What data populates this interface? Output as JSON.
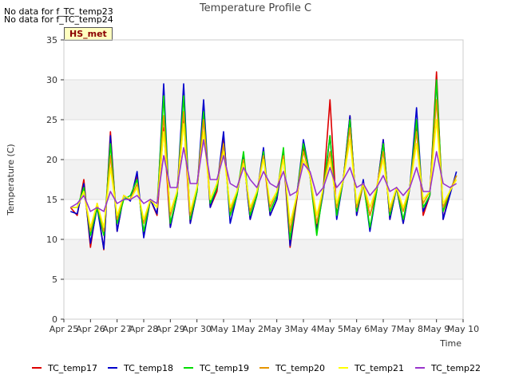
{
  "notices": [
    "No data for f_TC_temp23",
    "No data for f_TC_temp24"
  ],
  "badge": "HS_met",
  "chart_data": {
    "type": "line",
    "title": "Temperature Profile C",
    "xlabel": "Time",
    "ylabel": "Temperature (C)",
    "ylim": [
      0,
      35
    ],
    "yticks": [
      0,
      5,
      10,
      15,
      20,
      25,
      30,
      35
    ],
    "xlim": [
      0,
      15
    ],
    "xticks": [
      0,
      1,
      2,
      3,
      4,
      5,
      6,
      7,
      8,
      9,
      10,
      11,
      12,
      13,
      14,
      15
    ],
    "xtick_labels": [
      "Apr 25",
      "Apr 26",
      "Apr 27",
      "Apr 28",
      "Apr 29",
      "Apr 30",
      "May 1",
      "May 2",
      "May 3",
      "May 4",
      "May 5",
      "May 6",
      "May 7",
      "May 8",
      "May 9",
      "May 10"
    ],
    "grid": "horizontal bands",
    "legend_position": "bottom",
    "x": [
      0.25,
      0.5,
      0.75,
      1.0,
      1.25,
      1.5,
      1.75,
      2.0,
      2.25,
      2.5,
      2.75,
      3.0,
      3.25,
      3.5,
      3.75,
      4.0,
      4.25,
      4.5,
      4.75,
      5.0,
      5.25,
      5.5,
      5.75,
      6.0,
      6.25,
      6.5,
      6.75,
      7.0,
      7.25,
      7.5,
      7.75,
      8.0,
      8.25,
      8.5,
      8.75,
      9.0,
      9.25,
      9.5,
      9.75,
      10.0,
      10.25,
      10.5,
      10.75,
      11.0,
      11.25,
      11.5,
      11.75,
      12.0,
      12.25,
      12.5,
      12.75,
      13.0,
      13.25,
      13.5,
      13.75,
      14.0,
      14.25,
      14.5,
      14.75
    ],
    "series": [
      {
        "name": "TC_temp17",
        "color": "#dd0000",
        "values": [
          14.0,
          13.0,
          17.5,
          9.0,
          14.5,
          8.7,
          23.5,
          11.0,
          15.5,
          15.0,
          18.0,
          10.5,
          15.0,
          13.0,
          24.0,
          11.5,
          15.5,
          25.0,
          12.0,
          16.0,
          25.5,
          14.0,
          16.0,
          23.0,
          13.0,
          15.5,
          20.5,
          12.5,
          15.5,
          20.5,
          13.0,
          15.0,
          20.5,
          9.0,
          15.0,
          21.5,
          18.0,
          11.5,
          16.5,
          27.5,
          13.0,
          17.5,
          25.5,
          13.0,
          17.0,
          13.0,
          16.0,
          22.5,
          12.5,
          16.5,
          12.0,
          16.5,
          24.5,
          13.0,
          15.5,
          31.0,
          12.5,
          16.0,
          18.0
        ]
      },
      {
        "name": "TC_temp18",
        "color": "#0000cc",
        "values": [
          13.5,
          13.2,
          17.0,
          9.5,
          14.0,
          8.8,
          23.0,
          11.0,
          15.5,
          14.8,
          18.5,
          10.2,
          15.0,
          13.2,
          29.5,
          11.5,
          15.5,
          29.5,
          12.0,
          16.0,
          27.5,
          14.0,
          16.5,
          23.5,
          12.0,
          15.5,
          20.5,
          12.5,
          15.5,
          21.5,
          13.0,
          15.0,
          21.0,
          9.2,
          15.5,
          22.5,
          18.0,
          11.0,
          16.0,
          23.0,
          12.5,
          17.5,
          25.5,
          13.0,
          17.5,
          11.0,
          16.0,
          22.5,
          12.5,
          16.5,
          12.0,
          16.5,
          26.5,
          13.5,
          15.5,
          30.0,
          12.5,
          15.5,
          18.5
        ]
      },
      {
        "name": "TC_temp19",
        "color": "#00dd00",
        "values": [
          14.0,
          14.0,
          16.5,
          10.5,
          14.0,
          10.5,
          22.0,
          12.0,
          15.0,
          15.5,
          17.5,
          11.0,
          15.0,
          14.0,
          28.0,
          12.0,
          15.5,
          28.0,
          12.5,
          16.0,
          26.0,
          14.5,
          16.5,
          22.0,
          13.0,
          15.5,
          21.0,
          13.0,
          15.5,
          21.0,
          13.5,
          15.5,
          21.5,
          10.0,
          15.5,
          22.0,
          18.0,
          10.5,
          16.5,
          23.0,
          13.0,
          17.5,
          25.0,
          13.5,
          17.0,
          11.5,
          16.0,
          22.0,
          13.0,
          16.5,
          12.5,
          16.5,
          25.0,
          14.0,
          15.5,
          30.0,
          13.5,
          16.0,
          18.0
        ]
      },
      {
        "name": "TC_temp20",
        "color": "#e69500",
        "values": [
          14.0,
          14.0,
          16.0,
          11.0,
          14.5,
          11.0,
          20.5,
          12.5,
          15.5,
          15.0,
          17.0,
          12.0,
          15.0,
          14.0,
          25.5,
          13.0,
          16.0,
          26.0,
          13.0,
          16.5,
          25.0,
          15.0,
          17.0,
          22.0,
          13.5,
          16.0,
          20.0,
          13.5,
          16.0,
          20.5,
          14.0,
          16.0,
          20.5,
          11.0,
          15.5,
          21.0,
          18.0,
          12.0,
          16.5,
          21.0,
          14.0,
          17.5,
          24.0,
          14.0,
          17.0,
          13.0,
          16.5,
          21.0,
          13.5,
          16.5,
          13.5,
          16.5,
          23.5,
          14.5,
          16.0,
          27.5,
          14.0,
          16.0,
          18.0
        ]
      },
      {
        "name": "TC_temp21",
        "color": "#ffff00",
        "values": [
          14.0,
          14.0,
          16.0,
          11.5,
          14.5,
          11.5,
          19.0,
          13.0,
          15.5,
          15.0,
          16.5,
          12.5,
          15.0,
          14.0,
          23.5,
          13.5,
          16.0,
          24.5,
          13.5,
          16.5,
          23.5,
          15.0,
          17.0,
          21.0,
          14.0,
          16.0,
          19.5,
          14.0,
          16.0,
          20.0,
          14.5,
          16.0,
          20.0,
          12.0,
          15.5,
          20.0,
          18.0,
          13.0,
          16.5,
          20.0,
          14.5,
          17.5,
          22.5,
          14.5,
          17.0,
          14.0,
          16.5,
          20.0,
          14.0,
          16.5,
          14.0,
          16.5,
          22.0,
          15.0,
          16.0,
          25.0,
          14.5,
          16.0,
          17.5
        ]
      },
      {
        "name": "TC_temp22",
        "color": "#9933cc",
        "values": [
          14.0,
          14.5,
          15.5,
          13.5,
          14.0,
          13.5,
          16.0,
          14.5,
          15.0,
          15.0,
          15.5,
          14.5,
          15.0,
          14.5,
          20.5,
          16.5,
          16.5,
          21.5,
          17.0,
          17.0,
          22.5,
          17.5,
          17.5,
          20.5,
          17.0,
          16.5,
          19.0,
          17.5,
          16.5,
          18.5,
          17.0,
          16.5,
          18.5,
          15.5,
          16.0,
          19.5,
          18.5,
          15.5,
          16.5,
          19.0,
          16.5,
          17.5,
          19.0,
          16.5,
          17.0,
          15.5,
          16.5,
          18.0,
          16.0,
          16.5,
          15.5,
          16.5,
          19.0,
          16.0,
          16.0,
          21.0,
          17.0,
          16.5,
          17.0
        ]
      }
    ]
  }
}
